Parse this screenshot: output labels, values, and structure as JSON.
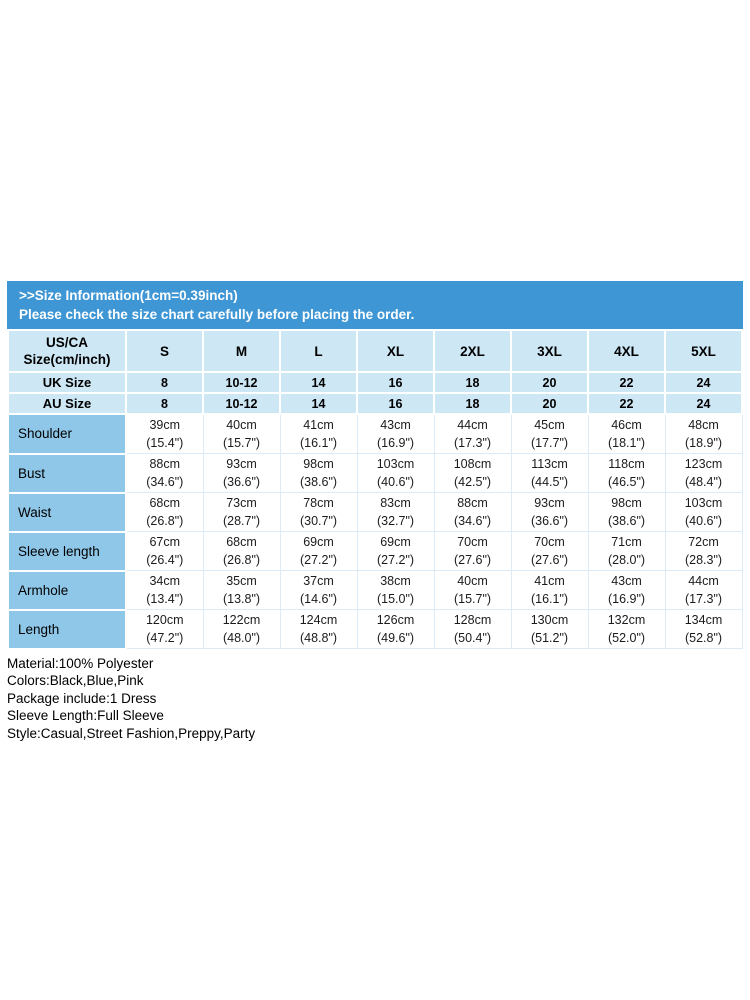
{
  "colors": {
    "banner_blue": "#3E96D4",
    "header_light_blue": "#CDE7F5",
    "label_column_blue": "#8FC7E9"
  },
  "banner": {
    "line1": ">>Size Information(1cm=0.39inch)",
    "line2": "Please check the size chart carefully before placing the order."
  },
  "table": {
    "corner": "US/CA\nSize(cm/inch)",
    "sizes": [
      "S",
      "M",
      "L",
      "XL",
      "2XL",
      "3XL",
      "4XL",
      "5XL"
    ],
    "uk": {
      "label": "UK Size",
      "values": [
        "8",
        "10-12",
        "14",
        "16",
        "18",
        "20",
        "22",
        "24"
      ]
    },
    "au": {
      "label": "AU Size",
      "values": [
        "8",
        "10-12",
        "14",
        "16",
        "18",
        "20",
        "22",
        "24"
      ]
    },
    "rows": [
      {
        "label": "Shoulder",
        "cells": [
          "39cm\n(15.4\")",
          "40cm\n(15.7\")",
          "41cm\n(16.1\")",
          "43cm\n(16.9\")",
          "44cm\n(17.3\")",
          "45cm\n(17.7\")",
          "46cm\n(18.1\")",
          "48cm\n(18.9\")"
        ]
      },
      {
        "label": "Bust",
        "cells": [
          "88cm\n(34.6\")",
          "93cm\n(36.6\")",
          "98cm\n(38.6\")",
          "103cm\n(40.6\")",
          "108cm\n(42.5\")",
          "113cm\n(44.5\")",
          "118cm\n(46.5\")",
          "123cm\n(48.4\")"
        ]
      },
      {
        "label": "Waist",
        "cells": [
          "68cm\n(26.8\")",
          "73cm\n(28.7\")",
          "78cm\n(30.7\")",
          "83cm\n(32.7\")",
          "88cm\n(34.6\")",
          "93cm\n(36.6\")",
          "98cm\n(38.6\")",
          "103cm\n(40.6\")"
        ]
      },
      {
        "label": "Sleeve length",
        "cells": [
          "67cm\n(26.4\")",
          "68cm\n(26.8\")",
          "69cm\n(27.2\")",
          "69cm\n(27.2\")",
          "70cm\n(27.6\")",
          "70cm\n(27.6\")",
          "71cm\n(28.0\")",
          "72cm\n(28.3\")"
        ]
      },
      {
        "label": "Armhole",
        "cells": [
          "34cm\n(13.4\")",
          "35cm\n(13.8\")",
          "37cm\n(14.6\")",
          "38cm\n(15.0\")",
          "40cm\n(15.7\")",
          "41cm\n(16.1\")",
          "43cm\n(16.9\")",
          "44cm\n(17.3\")"
        ]
      },
      {
        "label": "Length",
        "cells": [
          "120cm\n(47.2\")",
          "122cm\n(48.0\")",
          "124cm\n(48.8\")",
          "126cm\n(49.6\")",
          "128cm\n(50.4\")",
          "130cm\n(51.2\")",
          "132cm\n(52.0\")",
          "134cm\n(52.8\")"
        ]
      }
    ]
  },
  "details": [
    "Material:100% Polyester",
    "Colors:Black,Blue,Pink",
    "Package include:1 Dress",
    "Sleeve Length:Full Sleeve",
    "Style:Casual,Street Fashion,Preppy,Party"
  ]
}
